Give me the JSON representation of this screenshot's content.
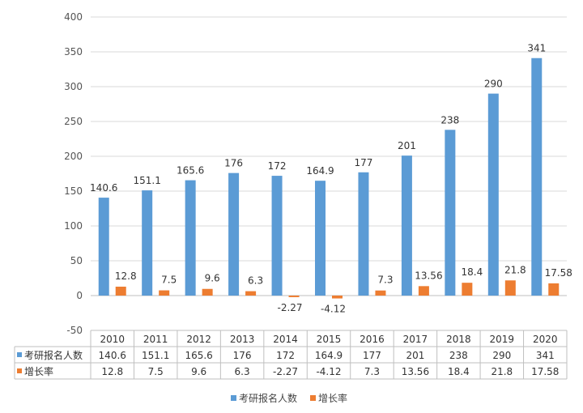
{
  "chart_data": {
    "type": "bar",
    "categories": [
      "2010",
      "2011",
      "2012",
      "2013",
      "2014",
      "2015",
      "2016",
      "2017",
      "2018",
      "2019",
      "2020"
    ],
    "series": [
      {
        "name": "考研报名人数",
        "color": "#5b9bd5",
        "values": [
          140.6,
          151.1,
          165.6,
          176,
          172,
          164.9,
          177,
          201,
          238,
          290,
          341
        ],
        "labels": [
          "140.6",
          "151.1",
          "165.6",
          "176",
          "172",
          "164.9",
          "177",
          "201",
          "238",
          "290",
          "341"
        ]
      },
      {
        "name": "增长率",
        "color": "#ed7d31",
        "values": [
          12.8,
          7.5,
          9.6,
          6.3,
          -2.27,
          -4.12,
          7.3,
          13.56,
          18.4,
          21.8,
          17.58
        ],
        "labels": [
          "12.8",
          "7.5",
          "9.6",
          "6.3",
          "-2.27",
          "-4.12",
          "7.3",
          "13.56",
          "18.4",
          "21.8",
          "17.58"
        ]
      }
    ],
    "ylim": [
      -50,
      400
    ],
    "yticks": [
      -50,
      0,
      50,
      100,
      150,
      200,
      250,
      300,
      350,
      400
    ],
    "grid": true,
    "legend": "bottom-center",
    "data_table": true
  }
}
